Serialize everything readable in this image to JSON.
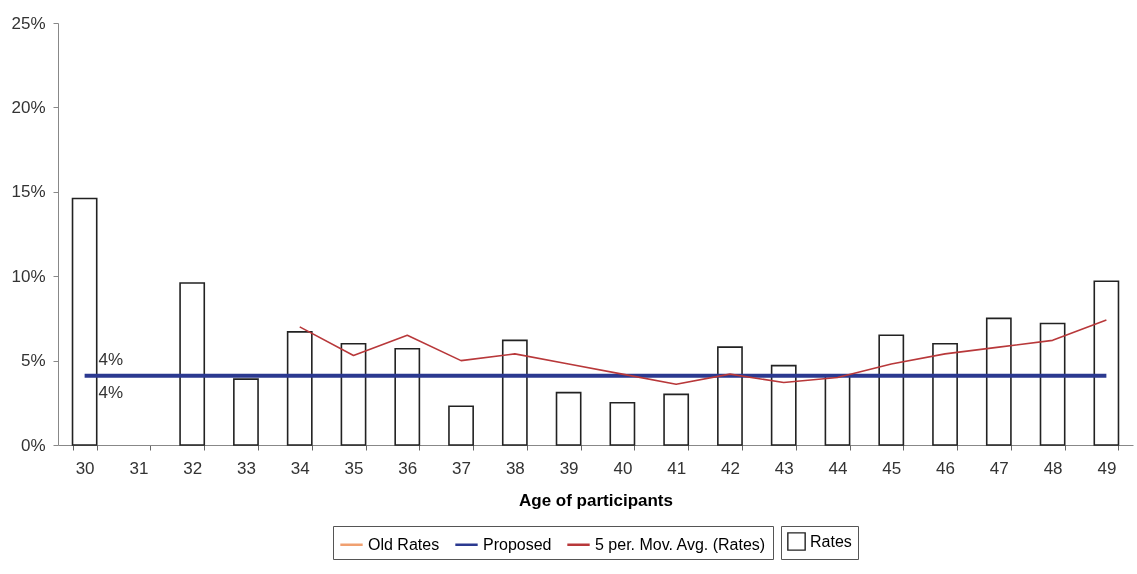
{
  "chart_data": {
    "type": "bar",
    "xlabel": "Age of participants",
    "categories": [
      "30",
      "31",
      "32",
      "33",
      "34",
      "35",
      "36",
      "37",
      "38",
      "39",
      "40",
      "41",
      "42",
      "43",
      "44",
      "45",
      "46",
      "47",
      "48",
      "49"
    ],
    "series": [
      {
        "name": "Rates",
        "color": "#ffffff",
        "values": [
          14.6,
          null,
          9.6,
          3.9,
          6.7,
          6.0,
          5.7,
          2.3,
          6.2,
          3.1,
          2.5,
          3.0,
          5.8,
          4.7,
          4.1,
          6.5,
          6.0,
          7.5,
          7.2,
          9.7
        ]
      },
      {
        "name": "Old Rates",
        "type": "line",
        "color": "#f0a070",
        "values": [
          null,
          null,
          null,
          null,
          null,
          null,
          null,
          null,
          null,
          null,
          null,
          null,
          null,
          null,
          null,
          null,
          null,
          null,
          null,
          null
        ]
      },
      {
        "name": "Proposed",
        "type": "line",
        "color": "#2b3990",
        "values": [
          4.1,
          4.1,
          4.1,
          4.1,
          4.1,
          4.1,
          4.1,
          4.1,
          4.1,
          4.1,
          4.1,
          4.1,
          4.1,
          4.1,
          4.1,
          4.1,
          4.1,
          4.1,
          4.1,
          4.1
        ]
      },
      {
        "name": "5 per. Mov. Avg. (Rates)",
        "type": "line",
        "color": "#b8383a",
        "values": [
          null,
          null,
          null,
          null,
          7.0,
          5.3,
          6.5,
          5.0,
          5.4,
          4.8,
          4.2,
          3.6,
          4.2,
          3.7,
          4.0,
          4.8,
          5.4,
          5.8,
          6.2,
          7.4
        ]
      }
    ],
    "ylim": [
      0,
      25
    ],
    "yticks": [
      {
        "value": 0,
        "label": "0%"
      },
      {
        "value": 5,
        "label": "5%"
      },
      {
        "value": 10,
        "label": "10%"
      },
      {
        "value": 15,
        "label": "15%"
      },
      {
        "value": 20,
        "label": "20%"
      },
      {
        "value": 25,
        "label": "25%"
      }
    ],
    "annotations": [
      {
        "text": "4%",
        "x": "30",
        "y": 4.1
      },
      {
        "text": "4%",
        "x": "30",
        "y": 4.1
      }
    ],
    "legend": "bottom",
    "grid": false
  }
}
